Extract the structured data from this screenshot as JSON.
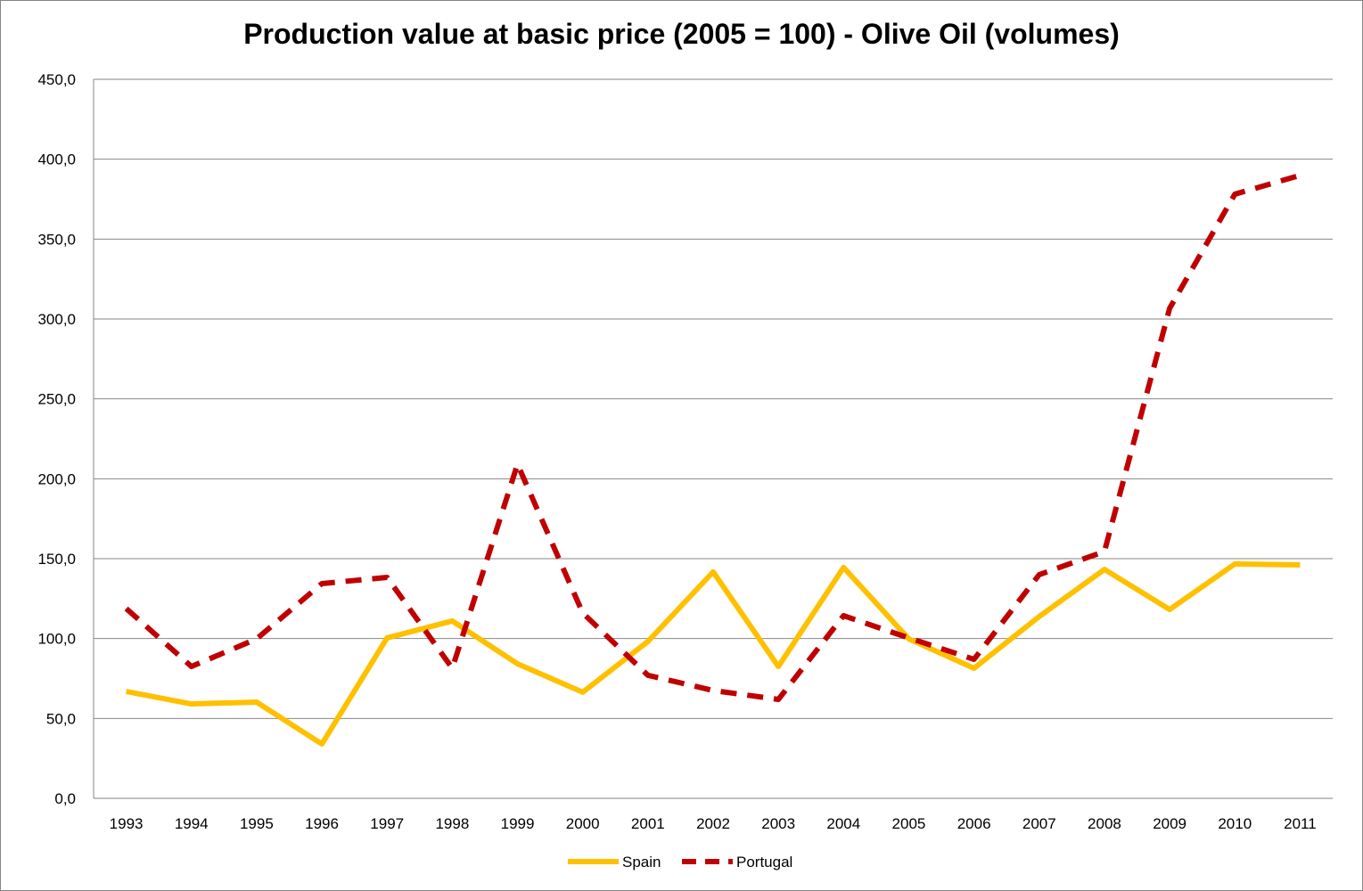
{
  "chart_data": {
    "type": "line",
    "title": "Production value at basic price (2005 = 100) - Olive Oil (volumes)",
    "xlabel": "",
    "ylabel": "",
    "categories": [
      "1993",
      "1994",
      "1995",
      "1996",
      "1997",
      "1998",
      "1999",
      "2000",
      "2001",
      "2002",
      "2003",
      "2004",
      "2005",
      "2006",
      "2007",
      "2008",
      "2009",
      "2010",
      "2011"
    ],
    "ylim": [
      0,
      450
    ],
    "yticks": [
      "0,0",
      "50,0",
      "100,0",
      "150,0",
      "200,0",
      "250,0",
      "300,0",
      "350,0",
      "400,0",
      "450,0"
    ],
    "grid": true,
    "legend_position": "bottom",
    "series": [
      {
        "name": "Spain",
        "color": "#FFC000",
        "style": "solid",
        "values": [
          66.9,
          59.1,
          60.2,
          34.0,
          100.4,
          111.0,
          84.2,
          66.4,
          98.2,
          141.7,
          82.5,
          144.5,
          99.8,
          81.4,
          113.8,
          143.3,
          118.2,
          146.7,
          146.1
        ]
      },
      {
        "name": "Portugal",
        "color": "#C00000",
        "style": "dashed",
        "values": [
          118.8,
          82.5,
          99.8,
          134.4,
          138.3,
          81.4,
          209.1,
          116.0,
          77.0,
          67.5,
          61.9,
          114.3,
          100.4,
          87.0,
          140.0,
          154.5,
          306.7,
          378.1,
          389.9
        ]
      }
    ]
  }
}
